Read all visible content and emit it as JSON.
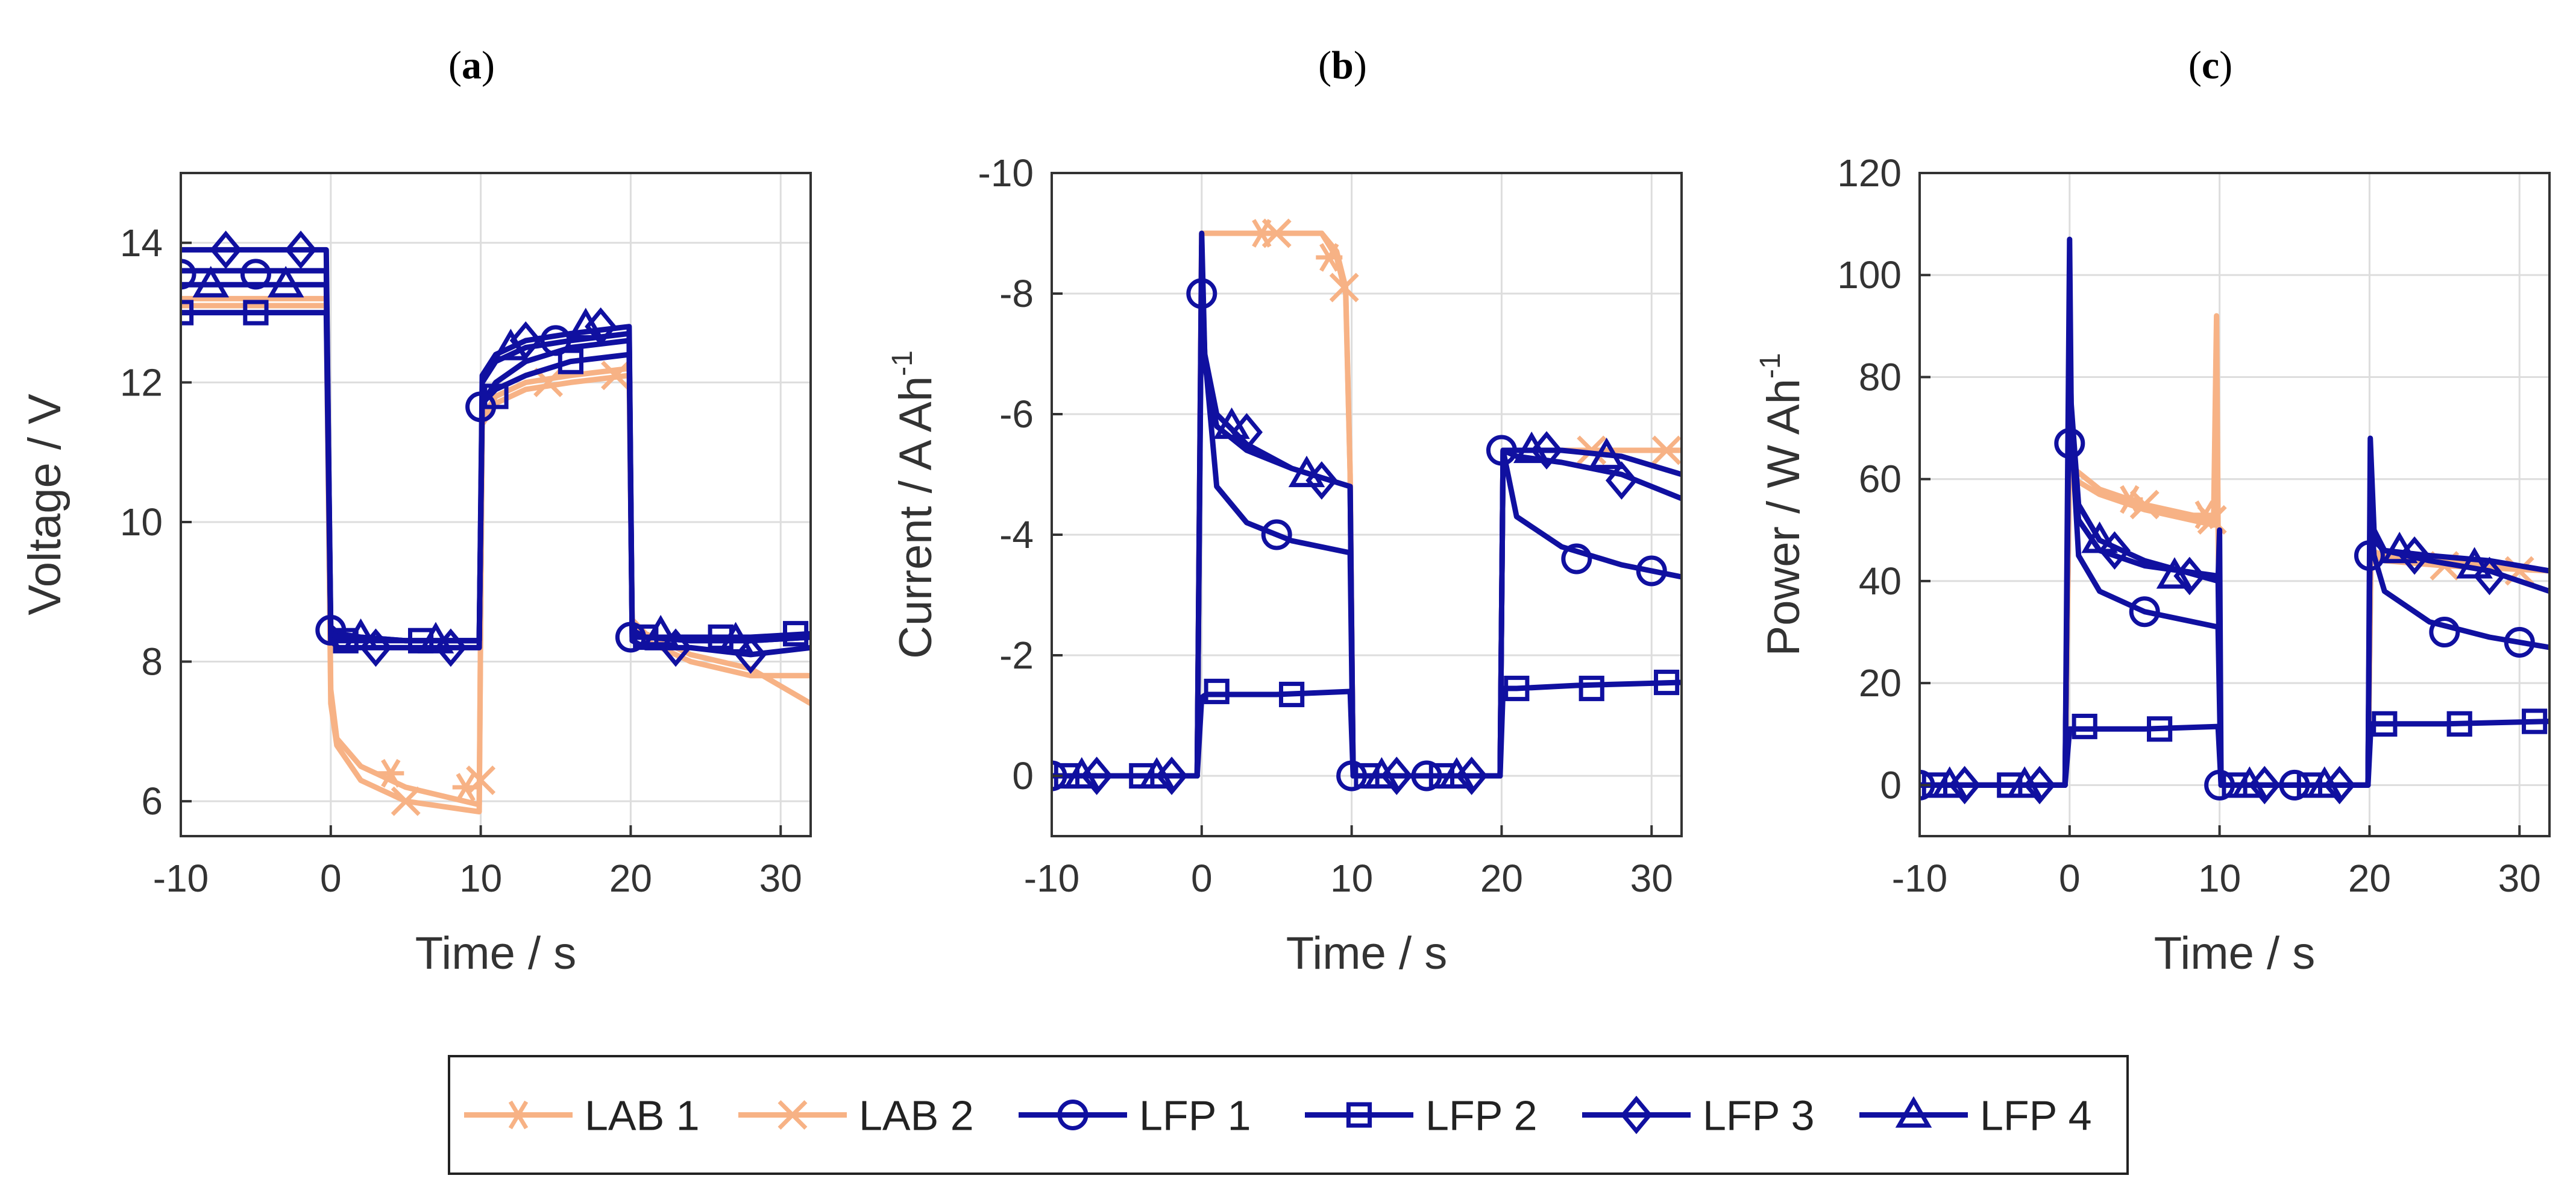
{
  "figure": {
    "title": ""
  },
  "colors": {
    "lab": "#F7B285",
    "lfp": "#1010A0",
    "grid": "#DDDDDD",
    "axis": "#333333"
  },
  "legend": [
    {
      "label": "LAB 1",
      "marker": "asterisk",
      "color": "#F7B285"
    },
    {
      "label": "LAB 2",
      "marker": "x",
      "color": "#F7B285"
    },
    {
      "label": "LFP 1",
      "marker": "circle",
      "color": "#1010A0"
    },
    {
      "label": "LFP 2",
      "marker": "square",
      "color": "#1010A0"
    },
    {
      "label": "LFP 3",
      "marker": "diamond",
      "color": "#1010A0"
    },
    {
      "label": "LFP 4",
      "marker": "triangle",
      "color": "#1010A0"
    }
  ],
  "chart_data": [
    {
      "panel": "(a)",
      "panel_bold": "a",
      "type": "line",
      "xlabel": "Time / s",
      "ylabel": "Voltage / V",
      "ylabel_sup": "",
      "xlim": [
        -10,
        32
      ],
      "ylim": [
        5.5,
        15
      ],
      "yreverse": false,
      "xticks": [
        -10,
        0,
        10,
        20,
        30
      ],
      "yticks": [
        6,
        8,
        10,
        12,
        14
      ],
      "grid": true,
      "series": [
        {
          "name": "LAB 1",
          "marker": "asterisk",
          "x": [
            -10,
            -0.3,
            0,
            0.4,
            2,
            5,
            9.9,
            10.1,
            11,
            13,
            16,
            19.9,
            20.1,
            21,
            24,
            28,
            32
          ],
          "y": [
            13.1,
            13.1,
            7.6,
            6.9,
            6.5,
            6.2,
            5.95,
            11.5,
            11.8,
            12.0,
            12.1,
            12.2,
            8.6,
            8.4,
            8.1,
            7.9,
            7.4
          ],
          "markers_x": [
            4,
            9
          ],
          "markers_y": [
            6.4,
            6.2
          ]
        },
        {
          "name": "LAB 2",
          "marker": "x",
          "x": [
            -10,
            -0.3,
            0,
            0.4,
            2,
            5,
            9.9,
            10.1,
            11,
            13,
            16,
            19.9,
            20.1,
            21,
            24,
            28,
            32
          ],
          "y": [
            13.2,
            13.2,
            7.4,
            6.8,
            6.3,
            6.0,
            5.85,
            11.4,
            11.7,
            11.9,
            12.0,
            12.1,
            8.5,
            8.3,
            8.0,
            7.8,
            7.8
          ],
          "markers_x": [
            5,
            10,
            14.5,
            19
          ],
          "markers_y": [
            6.0,
            6.3,
            12.0,
            12.1
          ]
        },
        {
          "name": "LFP 1",
          "marker": "circle",
          "x": [
            -10,
            -0.3,
            0,
            0.5,
            2,
            5,
            9.9,
            10.1,
            11,
            13,
            16,
            19.9,
            20.1,
            21,
            24,
            28,
            32
          ],
          "y": [
            13.6,
            13.6,
            8.5,
            8.4,
            8.35,
            8.3,
            8.3,
            11.7,
            12.0,
            12.3,
            12.5,
            12.6,
            8.4,
            8.35,
            8.3,
            8.3,
            8.35
          ],
          "markers_x": [
            -10,
            -5,
            0,
            10,
            15,
            20
          ],
          "markers_y": [
            13.55,
            13.55,
            8.45,
            11.65,
            12.6,
            8.35
          ]
        },
        {
          "name": "LFP 2",
          "marker": "square",
          "x": [
            -10,
            -0.3,
            0,
            0.5,
            2,
            5,
            9.9,
            10.1,
            11,
            13,
            16,
            19.9,
            20.1,
            21,
            24,
            28,
            32
          ],
          "y": [
            13.0,
            13.0,
            8.3,
            8.3,
            8.3,
            8.3,
            8.3,
            11.7,
            11.9,
            12.1,
            12.3,
            12.4,
            8.35,
            8.35,
            8.35,
            8.35,
            8.4
          ],
          "markers_x": [
            -10,
            -5,
            1,
            6,
            11,
            16,
            21,
            26,
            31
          ],
          "markers_y": [
            13.0,
            13.0,
            8.3,
            8.3,
            11.8,
            12.3,
            8.35,
            8.35,
            8.4
          ]
        },
        {
          "name": "LFP 3",
          "marker": "diamond",
          "x": [
            -10,
            -0.3,
            0,
            0.5,
            2,
            5,
            9.9,
            10.1,
            11,
            13,
            16,
            19.9,
            20.1,
            21,
            24,
            28,
            32
          ],
          "y": [
            13.9,
            13.9,
            8.3,
            8.2,
            8.2,
            8.2,
            8.2,
            12.0,
            12.3,
            12.5,
            12.6,
            12.7,
            8.3,
            8.2,
            8.2,
            8.1,
            8.2
          ],
          "markers_x": [
            -7,
            -2,
            3,
            8,
            13,
            18,
            23,
            28
          ],
          "markers_y": [
            13.9,
            13.9,
            8.2,
            8.2,
            12.6,
            12.8,
            8.2,
            8.1
          ]
        },
        {
          "name": "LFP 4",
          "marker": "triangle",
          "x": [
            -10,
            -0.3,
            0,
            0.5,
            2,
            5,
            9.9,
            10.1,
            11,
            13,
            16,
            19.9,
            20.1,
            21,
            24,
            28,
            32
          ],
          "y": [
            13.4,
            13.4,
            8.4,
            8.35,
            8.35,
            8.3,
            8.3,
            12.1,
            12.4,
            12.6,
            12.7,
            12.8,
            8.45,
            8.35,
            8.3,
            8.3,
            8.35
          ],
          "markers_x": [
            -8,
            -3,
            2,
            7,
            12,
            17,
            22,
            27
          ],
          "markers_y": [
            13.4,
            13.4,
            8.35,
            8.3,
            12.5,
            12.8,
            8.4,
            8.3
          ]
        }
      ]
    },
    {
      "panel": "(b)",
      "panel_bold": "b",
      "type": "line",
      "xlabel": "Time / s",
      "ylabel": "Current / A Ah",
      "ylabel_sup": "-1",
      "xlim": [
        -10,
        32
      ],
      "ylim": [
        1,
        -10
      ],
      "yreverse": true,
      "xticks": [
        -10,
        0,
        10,
        20,
        30
      ],
      "yticks": [
        -10,
        -8,
        -6,
        -4,
        -2,
        0
      ],
      "grid": true,
      "series": [
        {
          "name": "LAB 1",
          "marker": "asterisk",
          "x": [
            -10,
            -0.3,
            0,
            0.3,
            4,
            8,
            9,
            9.6,
            9.9,
            10.1,
            19.9,
            20.1,
            21,
            25,
            32
          ],
          "y": [
            0,
            0,
            -9.0,
            -9.0,
            -9.0,
            -9.0,
            -8.6,
            -8.0,
            -5.0,
            0,
            0,
            -5.4,
            -5.4,
            -5.4,
            -5.4
          ],
          "markers_x": [
            4,
            8.5
          ],
          "markers_y": [
            -9.0,
            -8.6
          ]
        },
        {
          "name": "LAB 2",
          "marker": "x",
          "x": [
            -10,
            -0.3,
            0,
            0.3,
            4,
            8,
            9,
            9.6,
            9.9,
            10.1,
            19.9,
            20.1,
            21,
            25,
            32
          ],
          "y": [
            0,
            0,
            -9.0,
            -9.0,
            -9.0,
            -9.0,
            -8.7,
            -8.1,
            -5.0,
            0,
            0,
            -5.4,
            -5.4,
            -5.4,
            -5.4
          ],
          "markers_x": [
            5,
            9.5,
            26,
            31
          ],
          "markers_y": [
            -9.0,
            -8.1,
            -5.4,
            -5.4
          ]
        },
        {
          "name": "LFP 1",
          "marker": "circle",
          "x": [
            -10,
            -0.3,
            0,
            0.2,
            1,
            3,
            6,
            9.9,
            10.1,
            19.9,
            20.1,
            21,
            24,
            28,
            32
          ],
          "y": [
            0,
            0,
            -8.5,
            -7.0,
            -4.8,
            -4.2,
            -3.9,
            -3.7,
            0,
            0,
            -5.4,
            -4.3,
            -3.8,
            -3.5,
            -3.3
          ],
          "markers_x": [
            -10,
            0,
            5,
            10,
            15,
            20,
            25,
            30
          ],
          "markers_y": [
            0,
            -8.0,
            -4.0,
            0,
            0,
            -5.4,
            -3.6,
            -3.4
          ]
        },
        {
          "name": "LFP 2",
          "marker": "square",
          "x": [
            -10,
            -0.3,
            0,
            0.3,
            1,
            5,
            9.9,
            10.1,
            19.9,
            20.1,
            21,
            25,
            32
          ],
          "y": [
            0,
            0,
            -1.3,
            -1.35,
            -1.35,
            -1.35,
            -1.4,
            0,
            0,
            -1.45,
            -1.45,
            -1.5,
            -1.55
          ],
          "markers_x": [
            -9,
            -4,
            1,
            6,
            11,
            16,
            21,
            26,
            31
          ],
          "markers_y": [
            0,
            0,
            -1.4,
            -1.35,
            0,
            0,
            -1.45,
            -1.45,
            -1.55
          ]
        },
        {
          "name": "LFP 3",
          "marker": "diamond",
          "x": [
            -10,
            -0.3,
            0,
            0.2,
            1,
            3,
            6,
            9.9,
            10.1,
            19.9,
            20.1,
            21,
            24,
            28,
            32
          ],
          "y": [
            0,
            0,
            -9.0,
            -7.0,
            -6.0,
            -5.5,
            -5.1,
            -4.8,
            0,
            0,
            -5.4,
            -5.3,
            -5.2,
            -5.0,
            -4.6
          ],
          "markers_x": [
            -7,
            -2,
            3,
            8,
            13,
            18,
            23,
            28
          ],
          "markers_y": [
            0,
            0,
            -5.7,
            -4.9,
            0,
            0,
            -5.4,
            -4.9
          ]
        },
        {
          "name": "LFP 4",
          "marker": "triangle",
          "x": [
            -10,
            -0.3,
            0,
            0.2,
            1,
            3,
            6,
            9.9,
            10.1,
            19.9,
            20.1,
            21,
            24,
            28,
            32
          ],
          "y": [
            0,
            0,
            -8.8,
            -6.8,
            -5.8,
            -5.4,
            -5.1,
            -4.8,
            0,
            0,
            -5.4,
            -5.4,
            -5.4,
            -5.3,
            -5.0
          ],
          "markers_x": [
            -8,
            -3,
            2,
            7,
            12,
            17,
            22,
            27
          ],
          "markers_y": [
            0,
            0,
            -5.8,
            -5.0,
            0,
            0,
            -5.4,
            -5.3
          ]
        }
      ]
    },
    {
      "panel": "(c)",
      "panel_bold": "c",
      "type": "line",
      "xlabel": "Time / s",
      "ylabel": "Power / W Ah",
      "ylabel_sup": "-1",
      "xlim": [
        -10,
        32
      ],
      "ylim": [
        -10,
        120
      ],
      "yreverse": false,
      "xticks": [
        -10,
        0,
        10,
        20,
        30
      ],
      "yticks": [
        0,
        20,
        40,
        60,
        80,
        100,
        120
      ],
      "grid": true,
      "series": [
        {
          "name": "LAB 1",
          "marker": "asterisk",
          "x": [
            -10,
            -0.3,
            0,
            0.3,
            2,
            5,
            9.6,
            9.8,
            9.9,
            10.1,
            19.9,
            20.1,
            21,
            25,
            32
          ],
          "y": [
            0,
            0,
            65,
            62,
            58,
            55,
            52,
            92,
            52,
            0,
            0,
            46,
            45,
            44,
            42
          ],
          "markers_x": [
            4,
            9
          ],
          "markers_y": [
            56,
            53
          ]
        },
        {
          "name": "LAB 2",
          "marker": "x",
          "x": [
            -10,
            -0.3,
            0,
            0.3,
            2,
            5,
            9.6,
            9.9,
            10.1,
            19.9,
            20.1,
            21,
            25,
            32
          ],
          "y": [
            0,
            0,
            63,
            60,
            57,
            54,
            51,
            51,
            0,
            0,
            45,
            44,
            43,
            42
          ],
          "markers_x": [
            5,
            9.5,
            25,
            30
          ],
          "markers_y": [
            55,
            52,
            43,
            42
          ]
        },
        {
          "name": "LFP 1",
          "marker": "circle",
          "x": [
            -10,
            -0.3,
            0,
            0.15,
            0.6,
            2,
            5,
            9.9,
            10.1,
            19.9,
            20.05,
            20.3,
            21,
            24,
            28,
            32
          ],
          "y": [
            0,
            0,
            90,
            68,
            45,
            38,
            34,
            31,
            0,
            0,
            55,
            45,
            38,
            32,
            29,
            27
          ],
          "markers_x": [
            -10,
            0,
            5,
            10,
            15,
            20,
            25,
            30
          ],
          "markers_y": [
            0,
            67,
            34,
            0,
            0,
            45,
            30,
            28
          ]
        },
        {
          "name": "LFP 2",
          "marker": "square",
          "x": [
            -10,
            -0.3,
            0,
            0.3,
            1,
            5,
            9.9,
            10.1,
            19.9,
            20.1,
            21,
            25,
            32
          ],
          "y": [
            0,
            0,
            11,
            11,
            11,
            11,
            11.5,
            0,
            0,
            12,
            12,
            12,
            12.5
          ],
          "markers_x": [
            -9,
            -4,
            1,
            6,
            11,
            16,
            21,
            26,
            31
          ],
          "markers_y": [
            0,
            0,
            11.5,
            11,
            0,
            0,
            12,
            12,
            12.5
          ]
        },
        {
          "name": "LFP 3",
          "marker": "diamond",
          "x": [
            -10,
            -0.3,
            0,
            0.1,
            0.6,
            2,
            5,
            9.9,
            10.0,
            10.1,
            19.9,
            20.05,
            20.3,
            21,
            24,
            28,
            32
          ],
          "y": [
            0,
            0,
            107,
            75,
            55,
            48,
            44,
            40,
            50,
            0,
            0,
            68,
            50,
            46,
            44,
            42,
            38
          ],
          "markers_x": [
            -7,
            -2,
            3,
            8,
            13,
            18,
            23,
            28
          ],
          "markers_y": [
            0,
            0,
            46,
            41,
            0,
            0,
            45,
            41
          ]
        },
        {
          "name": "LFP 4",
          "marker": "triangle",
          "x": [
            -10,
            -0.3,
            0,
            0.15,
            0.6,
            2,
            5,
            9.9,
            10.1,
            19.9,
            20.05,
            20.3,
            21,
            24,
            28,
            32
          ],
          "y": [
            0,
            0,
            88,
            66,
            52,
            46,
            43,
            41,
            0,
            0,
            56,
            48,
            46,
            45,
            44,
            42
          ],
          "markers_x": [
            -8,
            -3,
            2,
            7,
            12,
            17,
            22,
            27
          ],
          "markers_y": [
            0,
            0,
            48,
            41,
            0,
            0,
            46,
            43
          ]
        }
      ]
    }
  ]
}
